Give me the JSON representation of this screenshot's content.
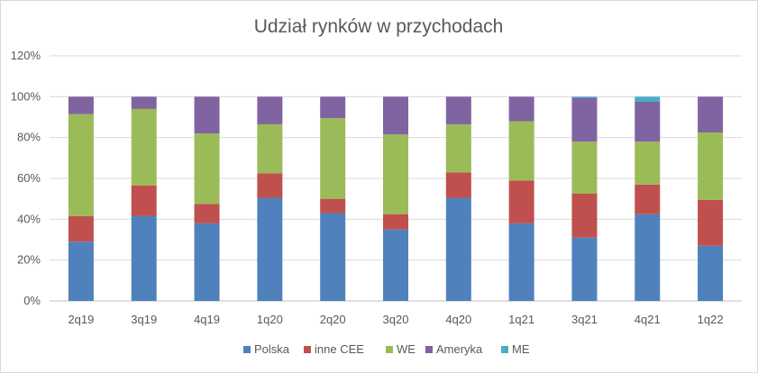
{
  "chart_data": {
    "type": "bar",
    "stacked": true,
    "title": "Udział rynków w przychodach",
    "xlabel": "",
    "ylabel": "",
    "categories": [
      "2q19",
      "3q19",
      "4q19",
      "1q20",
      "2q20",
      "3q20",
      "4q20",
      "1q21",
      "3q21",
      "4q21",
      "1q22"
    ],
    "ylim": [
      0,
      120
    ],
    "yticks": [
      "0%",
      "20%",
      "40%",
      "60%",
      "80%",
      "100%",
      "120%"
    ],
    "grid": true,
    "legend_position": "bottom",
    "series": [
      {
        "name": "Polska",
        "color": "#4f81bd",
        "values": [
          29,
          41.5,
          38,
          50.5,
          43,
          35,
          50.5,
          38,
          31,
          42.5,
          27
        ]
      },
      {
        "name": "inne CEE",
        "color": "#c0504d",
        "values": [
          12.5,
          15,
          9.5,
          12,
          7,
          7.5,
          12.5,
          21,
          21.5,
          14.5,
          22.5
        ]
      },
      {
        "name": "WE",
        "color": "#9bbb59",
        "values": [
          50,
          37.5,
          34.5,
          24,
          39.5,
          39,
          23.5,
          29,
          25.5,
          21,
          33
        ]
      },
      {
        "name": "Ameryka",
        "color": "#8064a2",
        "values": [
          8.5,
          6,
          18,
          13.5,
          10.5,
          18.5,
          13.5,
          12,
          21.5,
          19.5,
          17.5
        ]
      },
      {
        "name": "ME",
        "color": "#4bacc6",
        "values": [
          0,
          0,
          0,
          0,
          0,
          0,
          0,
          0,
          0.5,
          2.5,
          0
        ]
      }
    ]
  }
}
